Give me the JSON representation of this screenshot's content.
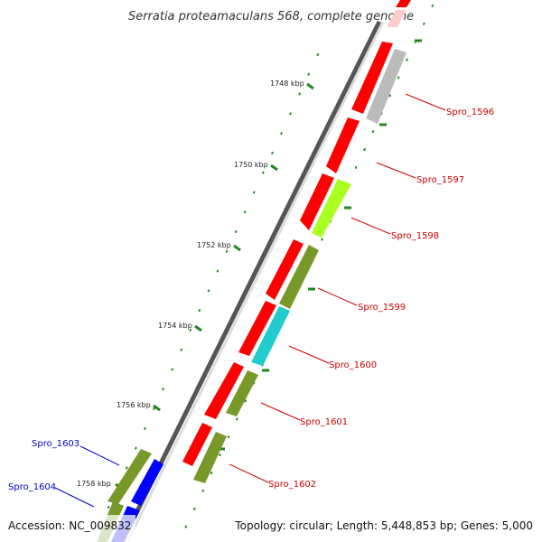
{
  "title": "Serratia proteamaculans 568, complete genome",
  "footer": {
    "accession": "Accession: NC_009832",
    "summary": "Topology: circular; Length: 5,448,853 bp; Genes: 5,000"
  },
  "ticks": [
    {
      "label": "1748 kbp"
    },
    {
      "label": "1750 kbp"
    },
    {
      "label": "1752 kbp"
    },
    {
      "label": "1754 kbp"
    },
    {
      "label": "1756 kbp"
    },
    {
      "label": "1758 kbp"
    }
  ],
  "genes": [
    {
      "label": "Spro_1596",
      "label_color": "#cc0000"
    },
    {
      "label": "Spro_1597",
      "label_color": "#cc0000"
    },
    {
      "label": "Spro_1598",
      "label_color": "#cc0000"
    },
    {
      "label": "Spro_1599",
      "label_color": "#cc0000"
    },
    {
      "label": "Spro_1600",
      "label_color": "#cc0000"
    },
    {
      "label": "Spro_1601",
      "label_color": "#cc0000"
    },
    {
      "label": "Spro_1602",
      "label_color": "#cc0000"
    },
    {
      "label": "Spro_1603",
      "label_color": "#0000cc"
    },
    {
      "label": "Spro_1604",
      "label_color": "#0000cc"
    }
  ],
  "colors": {
    "cds": "#ff0000",
    "rna": "#0000ff",
    "cog_olive": "#77992a",
    "cog_lime": "#aaff22",
    "cog_cyan": "#22cccc",
    "cog_grey": "#bbbbbb",
    "backbone": "#888888",
    "tick_green": "#228822"
  }
}
